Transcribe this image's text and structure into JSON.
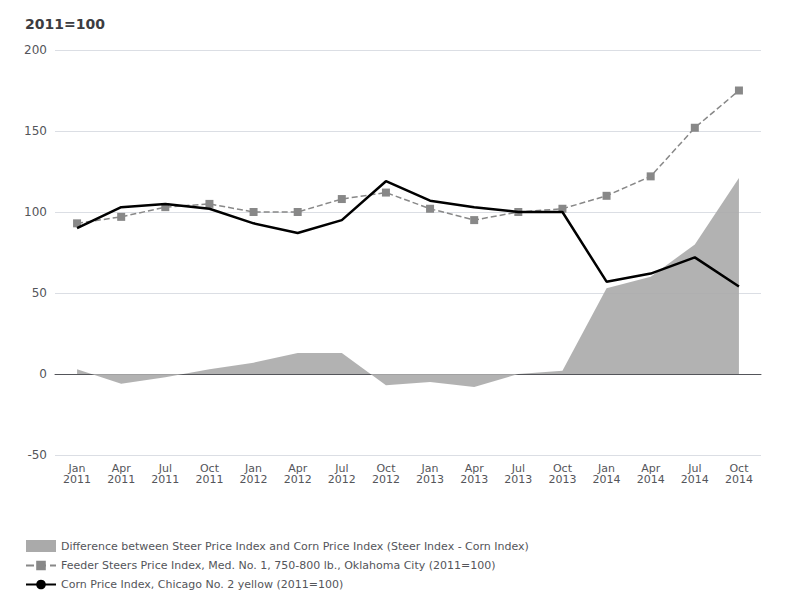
{
  "chart_data": {
    "type": "line",
    "title": "2011=100",
    "categories": [
      "Jan\n2011",
      "Apr\n2011",
      "Jul\n2011",
      "Oct\n2011",
      "Jan\n2012",
      "Apr\n2012",
      "Jul\n2012",
      "Oct\n2012",
      "Jan\n2013",
      "Apr\n2013",
      "Jul\n2013",
      "Oct\n2013",
      "Jan\n2014",
      "Apr\n2014",
      "Jul\n2014",
      "Oct\n2014"
    ],
    "series": [
      {
        "name": "Difference between Steer Price Index and Corn Price Index (Steer Index - Corn Index)",
        "type": "area",
        "color": "#aaaaaa",
        "values": [
          3,
          -6,
          -2,
          3,
          7,
          13,
          13,
          -7,
          -5,
          -8,
          0,
          2,
          53,
          60,
          80,
          121
        ]
      },
      {
        "name": "Feeder Steers Price Index, Med. No. 1, 750-800 lb., Oklahoma City (2011=100)",
        "type": "line",
        "color": "#888888",
        "line_style": "dashed",
        "marker": "square",
        "values": [
          93,
          97,
          103,
          105,
          100,
          100,
          108,
          112,
          102,
          95,
          100,
          102,
          110,
          122,
          152,
          175
        ]
      },
      {
        "name": "Corn Price Index, Chicago No. 2 yellow (2011=100)",
        "type": "line",
        "color": "#000000",
        "line_style": "solid",
        "values": [
          90,
          103,
          105,
          102,
          93,
          87,
          95,
          119,
          107,
          103,
          100,
          100,
          57,
          62,
          72,
          54
        ]
      }
    ],
    "ylim": [
      -50,
      200
    ],
    "yticks": [
      -50,
      0,
      50,
      100,
      150,
      200
    ],
    "grid": true,
    "legend": "lower left"
  }
}
